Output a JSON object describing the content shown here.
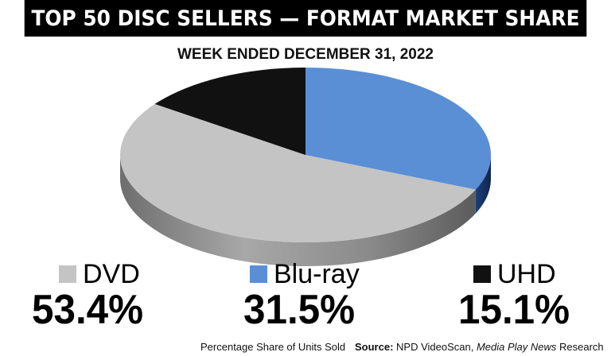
{
  "chart_data": {
    "type": "pie",
    "title": "TOP 50 DISC SELLERS — FORMAT MARKET SHARE",
    "subtitle": "WEEK ENDED DECEMBER 31, 2022",
    "categories": [
      "DVD",
      "Blu-ray",
      "UHD"
    ],
    "values": [
      53.4,
      31.5,
      15.1
    ],
    "value_labels": [
      "53.4%",
      "31.5%",
      "15.1%"
    ],
    "colors": [
      "#c4c4c4",
      "#5a8fd6",
      "#111111"
    ],
    "legend_position": "bottom"
  },
  "footer": {
    "note": "Percentage Share of Units Sold",
    "source_label": "Source:",
    "source_text": " NPD VideoScan, ",
    "source_pub": "Media Play News",
    "source_suffix": " Research"
  }
}
